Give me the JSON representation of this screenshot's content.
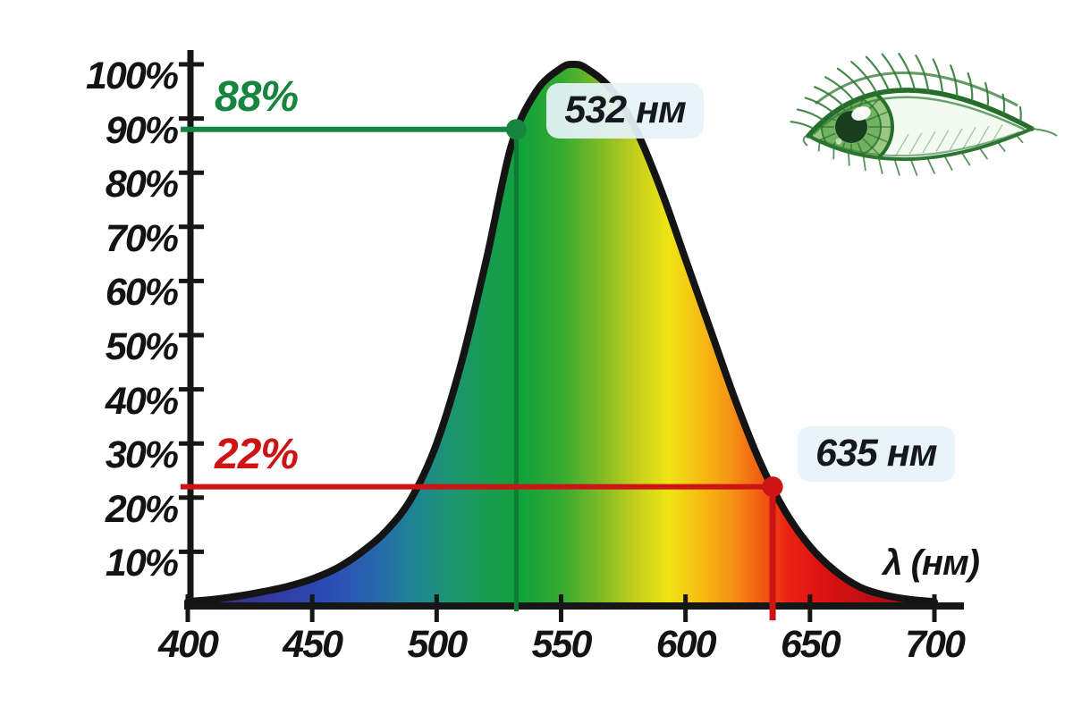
{
  "chart_data": {
    "type": "area",
    "xlabel": "λ (нм)",
    "x_range": [
      400,
      700
    ],
    "y_range_percent": [
      0,
      100
    ],
    "x_ticks": [
      400,
      450,
      500,
      550,
      600,
      650,
      700
    ],
    "y_tick_labels": [
      "10%",
      "20%",
      "30%",
      "40%",
      "50%",
      "60%",
      "70%",
      "80%",
      "90%",
      "100%"
    ],
    "grid": false,
    "legend": false,
    "axis_color": "#161616",
    "curve_outline_color": "#141414",
    "curve": {
      "name": "relative-spectral-sensitivity-of-eye",
      "x": [
        400,
        410,
        420,
        430,
        440,
        450,
        460,
        470,
        480,
        490,
        500,
        510,
        520,
        530,
        540,
        550,
        555,
        560,
        570,
        580,
        590,
        600,
        610,
        620,
        630,
        640,
        650,
        660,
        670,
        680,
        690,
        700
      ],
      "y_percent": [
        0.8,
        1.2,
        1.8,
        2.6,
        3.6,
        5.0,
        7.0,
        10,
        14,
        20,
        30,
        45,
        64,
        85,
        95,
        99.3,
        100,
        99.3,
        95.5,
        88,
        77,
        64,
        51,
        38,
        26.5,
        17.5,
        11,
        6.5,
        3.5,
        2.0,
        1.2,
        0.8
      ]
    },
    "annotations": [
      {
        "x": 532,
        "y_percent": 88,
        "wavelength_label": "532 нм",
        "value_label": "88%",
        "color": "#17853f"
      },
      {
        "x": 635,
        "y_percent": 22,
        "wavelength_label": "635 нм",
        "value_label": "22%",
        "color": "#cc1414"
      }
    ],
    "spectrum_gradient": [
      {
        "wavelength": 400,
        "color": "#2f2c6e"
      },
      {
        "wavelength": 430,
        "color": "#34389e"
      },
      {
        "wavelength": 455,
        "color": "#2b4ab4"
      },
      {
        "wavelength": 475,
        "color": "#2766ae"
      },
      {
        "wavelength": 490,
        "color": "#1f8296"
      },
      {
        "wavelength": 505,
        "color": "#1d9472"
      },
      {
        "wavelength": 520,
        "color": "#189b52"
      },
      {
        "wavelength": 535,
        "color": "#12a23a"
      },
      {
        "wavelength": 550,
        "color": "#35aa30"
      },
      {
        "wavelength": 565,
        "color": "#7ab928"
      },
      {
        "wavelength": 580,
        "color": "#c3cf1c"
      },
      {
        "wavelength": 593,
        "color": "#eee414"
      },
      {
        "wavelength": 605,
        "color": "#f6c013"
      },
      {
        "wavelength": 618,
        "color": "#f59414"
      },
      {
        "wavelength": 630,
        "color": "#f25e11"
      },
      {
        "wavelength": 641,
        "color": "#e92313"
      },
      {
        "wavelength": 655,
        "color": "#dc1213"
      },
      {
        "wavelength": 675,
        "color": "#b90f12"
      },
      {
        "wavelength": 700,
        "color": "#930b10"
      }
    ]
  },
  "decor": {
    "label_box_bg": "rgba(230,243,250,0.93)",
    "eye_sketch_color": "#2d7a33"
  }
}
